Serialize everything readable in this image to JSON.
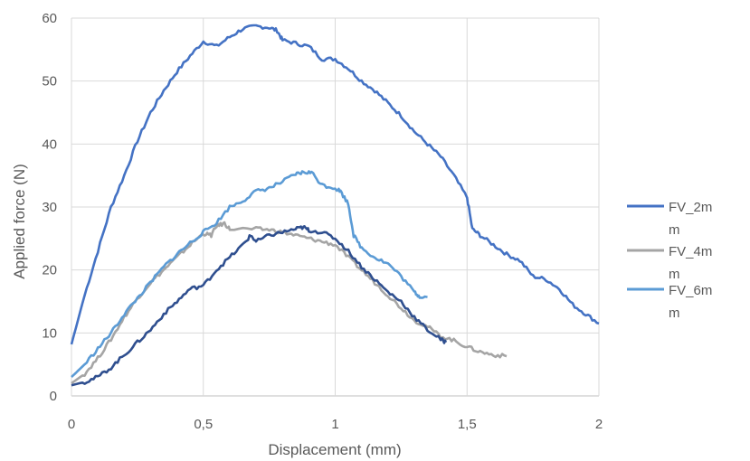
{
  "chart_data": {
    "type": "line",
    "title": "",
    "xlabel": "Displacement (mm)",
    "ylabel": "Applied force (N)",
    "xlim": [
      0,
      2
    ],
    "ylim": [
      0,
      60
    ],
    "x_ticks": [
      0,
      0.5,
      1,
      1.5,
      2
    ],
    "x_tick_labels": [
      "0",
      "0,5",
      "1",
      "1,5",
      "2"
    ],
    "y_ticks": [
      0,
      10,
      20,
      30,
      40,
      50,
      60
    ],
    "y_tick_labels": [
      "0",
      "10",
      "20",
      "30",
      "40",
      "50",
      "60"
    ],
    "grid": "vertical and horizontal",
    "legend_position": "right",
    "legend": [
      {
        "lines": [
          "FV_2m",
          "m"
        ],
        "color": "#4472C4"
      },
      {
        "lines": [
          "FV_4m",
          "m"
        ],
        "color": "#A5A5A5"
      },
      {
        "lines": [
          "FV_6m",
          "m"
        ],
        "color": "#5B9BD5"
      }
    ],
    "series": [
      {
        "name": "FV_2mm",
        "color": "#4472C4",
        "points": [
          [
            0,
            8.2
          ],
          [
            0.05,
            16
          ],
          [
            0.1,
            23
          ],
          [
            0.15,
            30
          ],
          [
            0.2,
            35
          ],
          [
            0.25,
            40.5
          ],
          [
            0.3,
            45
          ],
          [
            0.35,
            48.5
          ],
          [
            0.4,
            51.5
          ],
          [
            0.45,
            54
          ],
          [
            0.5,
            56.3
          ],
          [
            0.55,
            55.5
          ],
          [
            0.6,
            57
          ],
          [
            0.65,
            58.3
          ],
          [
            0.7,
            58.7
          ],
          [
            0.75,
            58.5
          ],
          [
            0.78,
            58
          ],
          [
            0.8,
            56.5
          ],
          [
            0.85,
            56
          ],
          [
            0.9,
            55.5
          ],
          [
            0.95,
            53.5
          ],
          [
            1,
            53.5
          ],
          [
            1.05,
            52
          ],
          [
            1.1,
            50
          ],
          [
            1.15,
            48.5
          ],
          [
            1.2,
            46.5
          ],
          [
            1.25,
            44.5
          ],
          [
            1.3,
            42
          ],
          [
            1.35,
            40
          ],
          [
            1.4,
            38
          ],
          [
            1.45,
            35
          ],
          [
            1.5,
            31.5
          ],
          [
            1.52,
            26.5
          ],
          [
            1.55,
            25.5
          ],
          [
            1.6,
            24
          ],
          [
            1.65,
            22.5
          ],
          [
            1.7,
            21.5
          ],
          [
            1.75,
            19
          ],
          [
            1.8,
            18.5
          ],
          [
            1.85,
            17
          ],
          [
            1.9,
            14.5
          ],
          [
            1.95,
            13
          ],
          [
            2,
            11.5
          ]
        ]
      },
      {
        "name": "FV_4mm",
        "color": "#A5A5A5",
        "points": [
          [
            0,
            2
          ],
          [
            0.05,
            3.5
          ],
          [
            0.1,
            6
          ],
          [
            0.15,
            9
          ],
          [
            0.2,
            12.5
          ],
          [
            0.25,
            15.5
          ],
          [
            0.3,
            18
          ],
          [
            0.35,
            20
          ],
          [
            0.4,
            22
          ],
          [
            0.45,
            24
          ],
          [
            0.5,
            25.8
          ],
          [
            0.53,
            25.5
          ],
          [
            0.55,
            27
          ],
          [
            0.58,
            27.4
          ],
          [
            0.6,
            26.5
          ],
          [
            0.7,
            26.5
          ],
          [
            0.75,
            26.4
          ],
          [
            0.8,
            26
          ],
          [
            0.85,
            25.5
          ],
          [
            0.9,
            25
          ],
          [
            0.95,
            24.5
          ],
          [
            1,
            24
          ],
          [
            1.05,
            22
          ],
          [
            1.1,
            20
          ],
          [
            1.15,
            18
          ],
          [
            1.2,
            16
          ],
          [
            1.25,
            14
          ],
          [
            1.3,
            12
          ],
          [
            1.35,
            11
          ],
          [
            1.4,
            9.5
          ],
          [
            1.45,
            8.8
          ],
          [
            1.5,
            7.8
          ],
          [
            1.55,
            7
          ],
          [
            1.6,
            6.5
          ],
          [
            1.65,
            6.3
          ]
        ]
      },
      {
        "name": "FV_6mm",
        "color": "#5B9BD5",
        "points": [
          [
            0,
            3
          ],
          [
            0.05,
            5
          ],
          [
            0.1,
            7.5
          ],
          [
            0.15,
            10
          ],
          [
            0.2,
            13
          ],
          [
            0.25,
            15.5
          ],
          [
            0.3,
            18
          ],
          [
            0.35,
            20.5
          ],
          [
            0.4,
            22.5
          ],
          [
            0.45,
            24.3
          ],
          [
            0.5,
            26
          ],
          [
            0.55,
            27.5
          ],
          [
            0.6,
            30
          ],
          [
            0.65,
            31
          ],
          [
            0.7,
            32.5
          ],
          [
            0.75,
            33
          ],
          [
            0.8,
            34
          ],
          [
            0.85,
            35.2
          ],
          [
            0.88,
            35.5
          ],
          [
            0.91,
            35.5
          ],
          [
            0.95,
            33.5
          ],
          [
            1,
            33
          ],
          [
            1.02,
            32.5
          ],
          [
            1.05,
            30.5
          ],
          [
            1.07,
            25.5
          ],
          [
            1.1,
            23.5
          ],
          [
            1.15,
            22
          ],
          [
            1.2,
            21
          ],
          [
            1.25,
            19
          ],
          [
            1.3,
            16.5
          ],
          [
            1.32,
            15.8
          ],
          [
            1.35,
            15.7
          ]
        ]
      },
      {
        "name": "",
        "color": "#2F4F8F",
        "points": [
          [
            0,
            1.7
          ],
          [
            0.05,
            2.2
          ],
          [
            0.1,
            3
          ],
          [
            0.15,
            4.5
          ],
          [
            0.2,
            6.5
          ],
          [
            0.25,
            8.5
          ],
          [
            0.3,
            10.5
          ],
          [
            0.35,
            13
          ],
          [
            0.4,
            15
          ],
          [
            0.45,
            17
          ],
          [
            0.5,
            17.5
          ],
          [
            0.55,
            20
          ],
          [
            0.6,
            22
          ],
          [
            0.65,
            24
          ],
          [
            0.68,
            25.5
          ],
          [
            0.7,
            24.5
          ],
          [
            0.75,
            25.5
          ],
          [
            0.8,
            26
          ],
          [
            0.85,
            26.5
          ],
          [
            0.88,
            26.8
          ],
          [
            0.9,
            26.3
          ],
          [
            0.95,
            26
          ],
          [
            1,
            25
          ],
          [
            1.05,
            23
          ],
          [
            1.1,
            20.5
          ],
          [
            1.15,
            18.5
          ],
          [
            1.2,
            16.5
          ],
          [
            1.25,
            15
          ],
          [
            1.3,
            12.5
          ],
          [
            1.35,
            10.5
          ],
          [
            1.4,
            9
          ],
          [
            1.42,
            8.5
          ]
        ]
      }
    ]
  }
}
